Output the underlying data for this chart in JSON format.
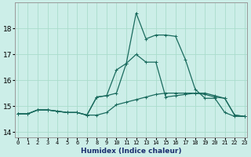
{
  "xlabel": "Humidex (Indice chaleur)",
  "background_color": "#cceee8",
  "grid_color": "#aaddcc",
  "line_color": "#1a6b5e",
  "x_ticks": [
    0,
    1,
    2,
    3,
    4,
    5,
    6,
    7,
    8,
    9,
    10,
    11,
    12,
    13,
    14,
    15,
    16,
    17,
    18,
    19,
    20,
    21,
    22,
    23
  ],
  "y_ticks": [
    14,
    15,
    16,
    17,
    18
  ],
  "ylim": [
    13.8,
    19.0
  ],
  "xlim": [
    -0.3,
    23.3
  ],
  "series1_y": [
    14.7,
    14.7,
    14.85,
    14.85,
    14.8,
    14.75,
    14.75,
    14.65,
    15.35,
    15.4,
    15.5,
    16.65,
    18.6,
    17.6,
    17.75,
    17.75,
    17.7,
    16.8,
    15.65,
    15.3,
    15.3,
    14.75,
    14.6,
    14.6
  ],
  "series2_y": [
    14.7,
    14.7,
    14.85,
    14.85,
    14.8,
    14.75,
    14.75,
    14.65,
    14.65,
    14.75,
    15.05,
    15.15,
    15.25,
    15.35,
    15.45,
    15.5,
    15.5,
    15.5,
    15.5,
    15.45,
    15.35,
    15.3,
    14.65,
    14.6
  ],
  "series3_y": [
    14.7,
    14.7,
    14.85,
    14.85,
    14.8,
    14.75,
    14.75,
    14.65,
    15.35,
    15.4,
    16.4,
    16.65,
    17.0,
    16.7,
    16.7,
    15.35,
    15.4,
    15.45,
    15.5,
    15.5,
    15.4,
    15.3,
    14.65,
    14.6
  ]
}
